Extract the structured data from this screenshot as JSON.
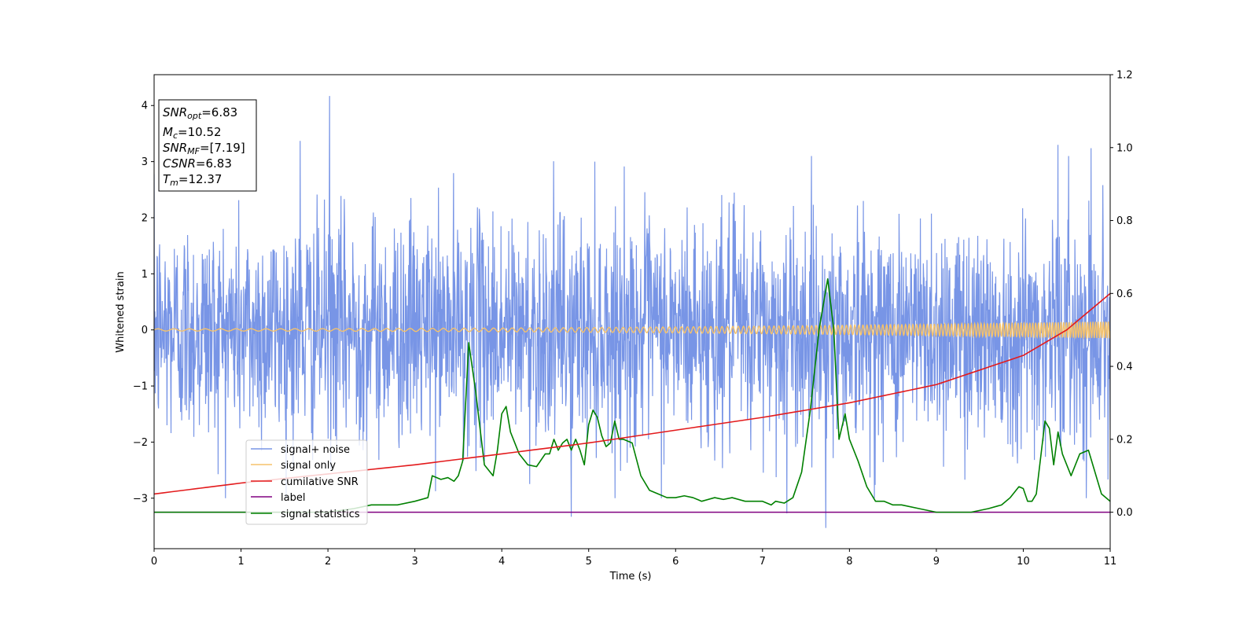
{
  "chart_data": {
    "type": "line",
    "xlabel": "Time (s)",
    "ylabel": "Whitened strain",
    "xlim": [
      0,
      11
    ],
    "ylim_left": [
      -3.9,
      4.55
    ],
    "ylim_right": [
      -0.1,
      1.2
    ],
    "x_ticks": [
      0,
      1,
      2,
      3,
      4,
      5,
      6,
      7,
      8,
      9,
      10,
      11
    ],
    "y_ticks_left": [
      -3,
      -2,
      -1,
      0,
      1,
      2,
      3,
      4
    ],
    "y_ticks_right": [
      0.0,
      0.2,
      0.4,
      0.6,
      0.8,
      1.0,
      1.2
    ],
    "grid": false,
    "legend_position": "lower-left",
    "annotation_box": {
      "snr_opt": {
        "name": "SNR",
        "sub": "opt",
        "value": "=6.83"
      },
      "mc": {
        "name": "M",
        "sub": "c",
        "value": "=10.52"
      },
      "snr_mf": {
        "name": "SNR",
        "sub": "MF",
        "value": "=[7.19]"
      },
      "csnr": {
        "name": "CSNR",
        "sub": "",
        "value": "=6.83"
      },
      "tm": {
        "name": "T",
        "sub": "m",
        "value": "=12.37"
      }
    },
    "series": [
      {
        "name": "signal+ noise",
        "color": "#7895e6",
        "axis": "left",
        "kind": "noise",
        "std": 1.0,
        "notable_peaks": [
          [
            2.02,
            4.17
          ],
          [
            1.68,
            3.37
          ],
          [
            10.78,
            3.24
          ],
          [
            10.4,
            3.3
          ],
          [
            7.73,
            -3.53
          ],
          [
            4.8,
            -3.33
          ],
          [
            7.28,
            -3.27
          ]
        ]
      },
      {
        "name": "signal only",
        "color": "#f5c26b",
        "axis": "left",
        "kind": "chirp",
        "amplitude_start": 0.02,
        "amplitude_end": 0.15
      },
      {
        "name": "cumilative SNR",
        "color": "#e31a1c",
        "axis": "right",
        "x": [
          0,
          1,
          2,
          3,
          4,
          5,
          6,
          7,
          8,
          9,
          10,
          10.5,
          11
        ],
        "y": [
          0.05,
          0.08,
          0.105,
          0.13,
          0.16,
          0.19,
          0.225,
          0.26,
          0.3,
          0.35,
          0.43,
          0.5,
          0.6
        ]
      },
      {
        "name": "label",
        "color": "#800080",
        "axis": "right",
        "x": [
          0,
          11
        ],
        "y": [
          0.0,
          0.0
        ]
      },
      {
        "name": "signal statistics",
        "color": "#008000",
        "axis": "right",
        "x": [
          0,
          0.5,
          1.0,
          1.5,
          2.0,
          2.3,
          2.5,
          2.8,
          3.0,
          3.15,
          3.2,
          3.3,
          3.38,
          3.45,
          3.5,
          3.55,
          3.62,
          3.7,
          3.8,
          3.9,
          3.95,
          4.0,
          4.05,
          4.1,
          4.2,
          4.3,
          4.4,
          4.5,
          4.55,
          4.6,
          4.65,
          4.7,
          4.75,
          4.8,
          4.85,
          4.9,
          4.95,
          5.0,
          5.05,
          5.1,
          5.15,
          5.2,
          5.25,
          5.3,
          5.35,
          5.4,
          5.5,
          5.6,
          5.7,
          5.8,
          5.9,
          6.0,
          6.1,
          6.2,
          6.3,
          6.45,
          6.55,
          6.65,
          6.8,
          6.9,
          7.0,
          7.1,
          7.15,
          7.25,
          7.35,
          7.45,
          7.55,
          7.65,
          7.75,
          7.82,
          7.88,
          7.95,
          8.0,
          8.1,
          8.2,
          8.3,
          8.4,
          8.5,
          8.6,
          8.8,
          9.0,
          9.2,
          9.4,
          9.6,
          9.75,
          9.85,
          9.95,
          10.0,
          10.05,
          10.1,
          10.15,
          10.25,
          10.3,
          10.35,
          10.4,
          10.45,
          10.55,
          10.65,
          10.75,
          10.9,
          11.0
        ],
        "y": [
          0.0,
          0.0,
          0.0,
          0.0,
          0.0,
          0.01,
          0.02,
          0.02,
          0.03,
          0.04,
          0.1,
          0.09,
          0.095,
          0.085,
          0.1,
          0.14,
          0.465,
          0.33,
          0.13,
          0.1,
          0.17,
          0.27,
          0.29,
          0.22,
          0.16,
          0.13,
          0.125,
          0.16,
          0.16,
          0.2,
          0.17,
          0.19,
          0.2,
          0.17,
          0.2,
          0.17,
          0.13,
          0.24,
          0.28,
          0.26,
          0.21,
          0.18,
          0.19,
          0.25,
          0.2,
          0.2,
          0.19,
          0.1,
          0.06,
          0.05,
          0.04,
          0.04,
          0.045,
          0.04,
          0.03,
          0.04,
          0.035,
          0.04,
          0.03,
          0.03,
          0.03,
          0.02,
          0.03,
          0.025,
          0.04,
          0.11,
          0.28,
          0.5,
          0.64,
          0.5,
          0.2,
          0.27,
          0.2,
          0.14,
          0.07,
          0.03,
          0.03,
          0.02,
          0.02,
          0.01,
          0.0,
          0.0,
          0.0,
          0.01,
          0.02,
          0.04,
          0.07,
          0.065,
          0.03,
          0.03,
          0.05,
          0.25,
          0.23,
          0.13,
          0.22,
          0.16,
          0.1,
          0.16,
          0.17,
          0.05,
          0.03
        ]
      }
    ]
  }
}
